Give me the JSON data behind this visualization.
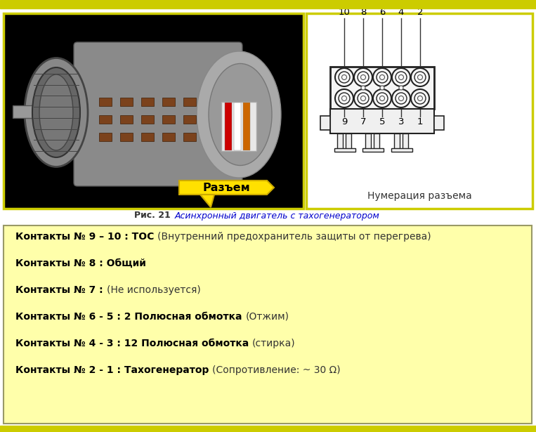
{
  "bg_color": "#ffffff",
  "yellow_border": "#cccc00",
  "caption_bold": "Рис. 21 ",
  "caption_italic": "Асинхронный двигатель с тахогенератором",
  "caption_color_bold": "#333333",
  "caption_color_italic": "#0000cc",
  "info_box_bg": "#ffffaa",
  "info_box_border": "#999966",
  "razem_label": "Разъем",
  "numeracia_label": "Нумерация разъема",
  "top_numbers": [
    "10",
    "8",
    "6",
    "4",
    "2"
  ],
  "bottom_numbers": [
    "9",
    "7",
    "5",
    "3",
    "1"
  ],
  "lines": [
    {
      "bold_part": "Контакты № 9 – 10 : ТОС ",
      "normal_part": "(Внутренний предохранитель защиты от перегрева)"
    },
    {
      "bold_part": "Контакты № 8 : Общий",
      "normal_part": ""
    },
    {
      "bold_part": "Контакты № 7 : ",
      "normal_part": "(Не используется)"
    },
    {
      "bold_part": "Контакты № 6 - 5 : 2 Полюсная обмотка ",
      "normal_part": "(Отжим)"
    },
    {
      "bold_part": "Контакты № 4 - 3 : 12 Полюсная обмотка ",
      "normal_part": "(стирка)"
    },
    {
      "bold_part": "Контакты № 2 - 1 : Тахогенератор ",
      "normal_part": "(Сопротивление: ~ 30 Ω)"
    }
  ],
  "figsize": [
    7.63,
    6.15
  ],
  "dpi": 100
}
